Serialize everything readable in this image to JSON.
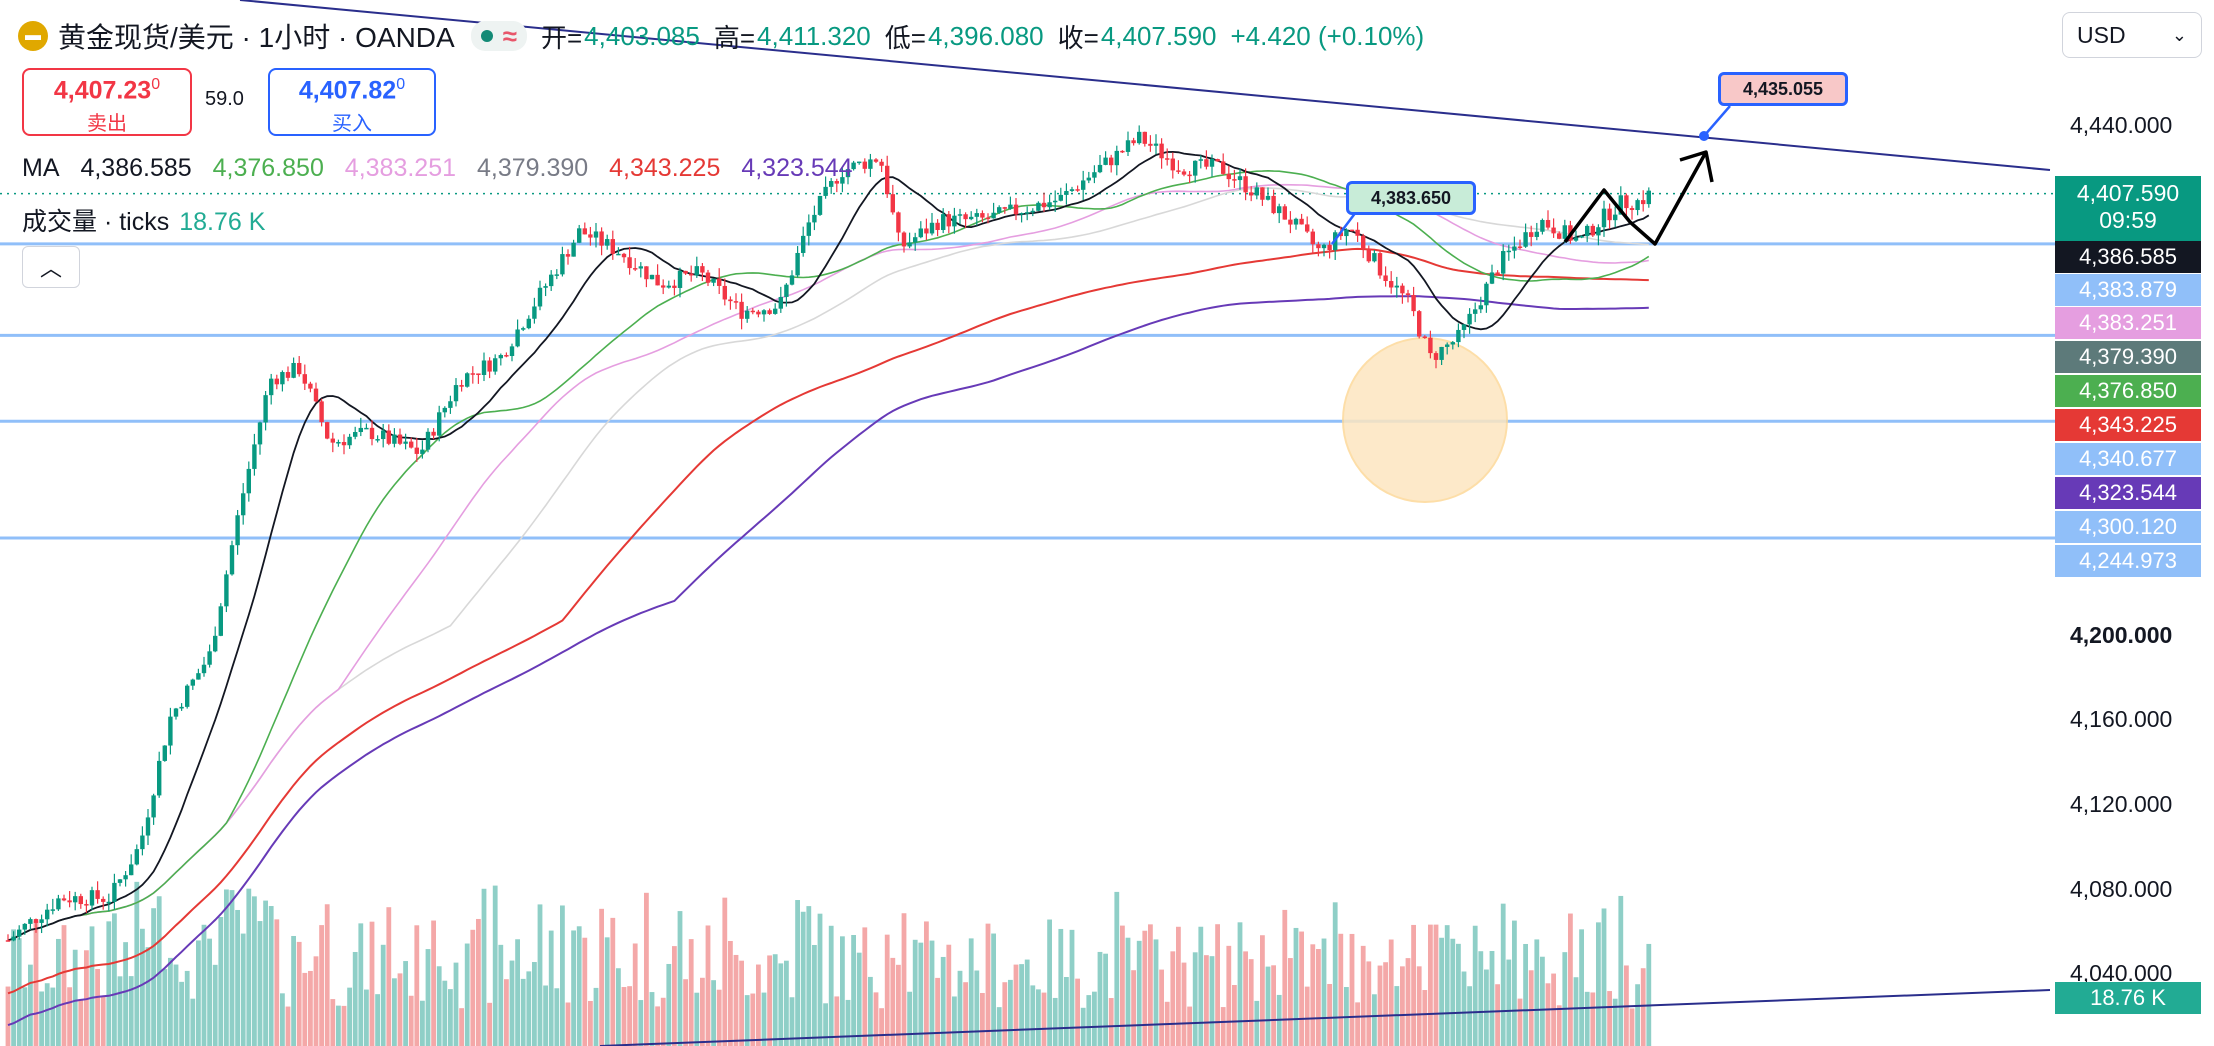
{
  "header": {
    "symbol": "黄金现货/美元 · 1小时 · OANDA",
    "logo_icon": "gold-bars-icon",
    "open_label": "开=",
    "open": "4,403.085",
    "high_label": "高=",
    "high": "4,411.320",
    "low_label": "低=",
    "low": "4,396.080",
    "close_label": "收=",
    "close": "4,407.590",
    "change": "+4.420 (+0.10%)"
  },
  "trade": {
    "sell_price": "4,407.23",
    "sell_sup": "0",
    "sell_label": "卖出",
    "spread": "59.0",
    "buy_price": "4,407.82",
    "buy_sup": "0",
    "buy_label": "买入"
  },
  "ma_legend": {
    "label": "MA",
    "values": [
      "4,386.585",
      "4,376.850",
      "4,383.251",
      "4,379.390",
      "4,343.225",
      "4,323.544"
    ],
    "colors": [
      "#131722",
      "#4caf50",
      "#e59ee0",
      "#787b86",
      "#e53935",
      "#673ab7"
    ]
  },
  "volume_legend": {
    "label": "成交量 · ticks",
    "value": "18.76 K"
  },
  "currency": "USD",
  "y_axis": {
    "ticks": [
      "4,440.000",
      "4,200.000",
      "4,160.000",
      "4,120.000",
      "4,080.000",
      "4,040.000"
    ],
    "bold_tick": "4,200.000"
  },
  "price_tags": [
    {
      "value": "4,386.585",
      "color": "#131722"
    },
    {
      "value": "4,383.879",
      "color": "#90bff9"
    },
    {
      "value": "4,383.251",
      "color": "#e59ee0"
    },
    {
      "value": "4,379.390",
      "color": "#5d7a7a"
    },
    {
      "value": "4,376.850",
      "color": "#4caf50"
    },
    {
      "value": "4,343.225",
      "color": "#e53935"
    },
    {
      "value": "4,340.677",
      "color": "#90bff9"
    },
    {
      "value": "4,323.544",
      "color": "#673ab7"
    },
    {
      "value": "4,300.120",
      "color": "#90bff9"
    },
    {
      "value": "4,244.973",
      "color": "#90bff9"
    }
  ],
  "current_price": {
    "value": "4,407.590",
    "countdown": "09:59",
    "color": "#089981"
  },
  "volume_tag": {
    "value": "18.76 K",
    "color": "#22ab94"
  },
  "callouts": [
    {
      "value": "4,435.055",
      "bg": "#f8c8c8",
      "border": "#2962ff"
    },
    {
      "value": "4,383.650",
      "bg": "#c8ecd8",
      "border": "#2962ff"
    }
  ],
  "colors": {
    "up": "#089981",
    "down": "#f23645",
    "vol_up": "#8fcfc7",
    "vol_down": "#f4a8a8",
    "hline": "#90bff9",
    "trendline": "#2a2e8c"
  },
  "chart_data": {
    "type": "candlestick",
    "title": "黄金现货/美元 · 1小时 · OANDA",
    "x_label": "",
    "y_label": "",
    "y_ticks": [
      4440,
      4200,
      4160,
      4120,
      4080,
      4040
    ],
    "horizontal_levels": [
      4383.879,
      4340.677,
      4300.12,
      4244.973
    ],
    "last": {
      "open": 4403.085,
      "high": 4411.32,
      "low": 4396.08,
      "close": 4407.59,
      "change": 4.42,
      "change_pct": 0.1
    },
    "moving_averages": [
      4386.585,
      4376.85,
      4383.251,
      4379.39,
      4343.225,
      4323.544
    ],
    "volume_last": "18.76 K",
    "annotations": [
      "4,435.055",
      "4,383.650"
    ]
  }
}
